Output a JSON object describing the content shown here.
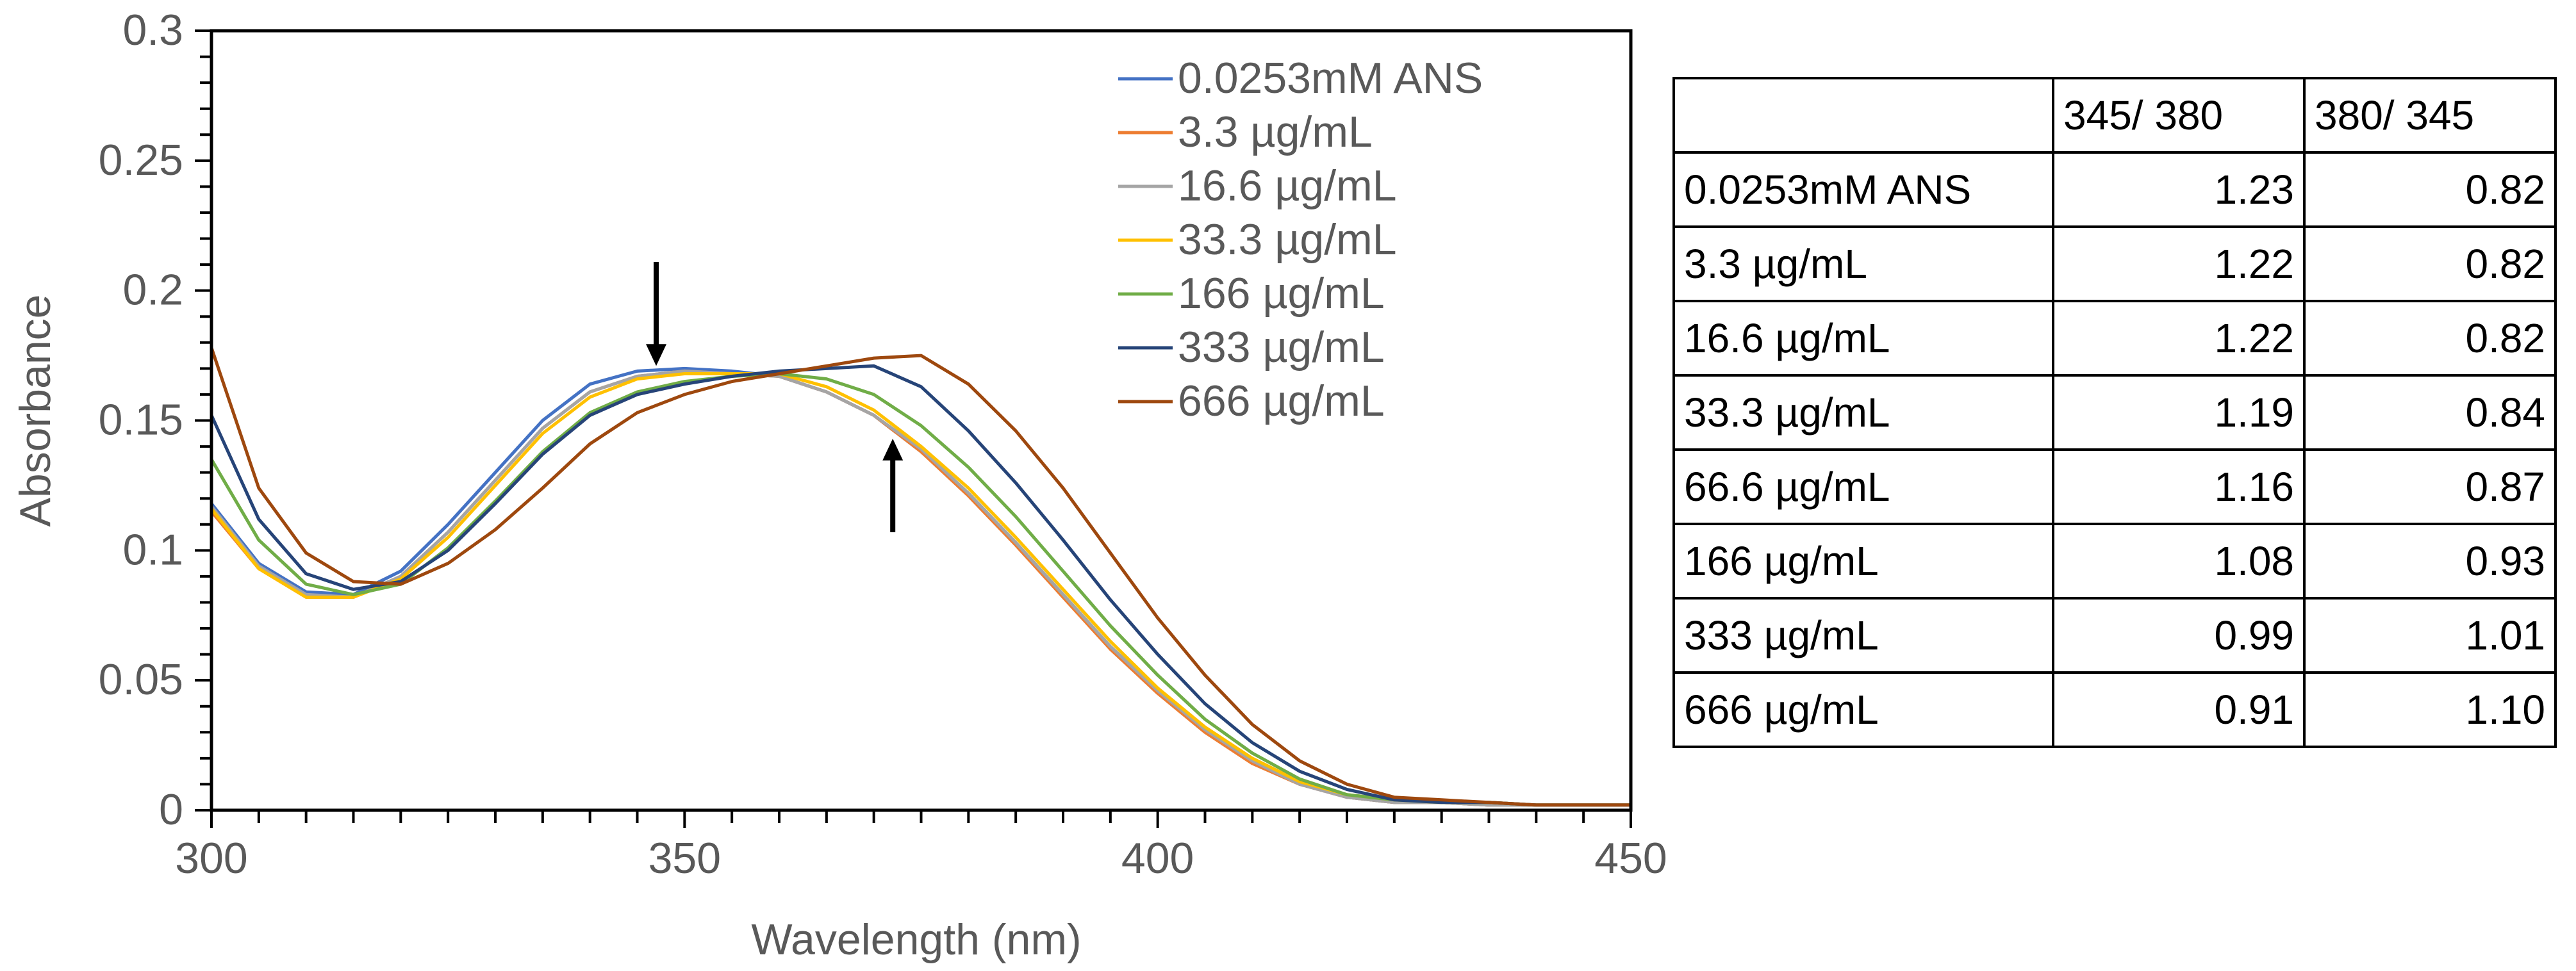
{
  "chart_data": {
    "type": "line",
    "title": "",
    "xlabel": "Wavelength (nm)",
    "ylabel": "Absorbance",
    "xlim": [
      300,
      450
    ],
    "ylim": [
      0,
      0.3
    ],
    "xticks": [
      300,
      350,
      400,
      450
    ],
    "xtick_labels": [
      "300",
      "350",
      "400",
      "450"
    ],
    "yticks": [
      0,
      0.05,
      0.1,
      0.15,
      0.2,
      0.25,
      0.3
    ],
    "ytick_labels": [
      "0",
      "0.05",
      "0.1",
      "0.15",
      "0.2",
      "0.25",
      "0.3"
    ],
    "grid": false,
    "legend_position": "top-right",
    "series": [
      {
        "name": "0.0253mM ANS",
        "color": "#4472C4",
        "x": [
          300,
          305,
          310,
          315,
          320,
          325,
          330,
          335,
          340,
          345,
          350,
          355,
          360,
          365,
          370,
          375,
          380,
          385,
          390,
          395,
          400,
          405,
          410,
          415,
          420,
          425,
          430,
          435,
          440,
          445,
          450
        ],
        "y": [
          0.118,
          0.095,
          0.084,
          0.083,
          0.092,
          0.11,
          0.13,
          0.15,
          0.164,
          0.169,
          0.17,
          0.169,
          0.167,
          0.161,
          0.152,
          0.138,
          0.122,
          0.103,
          0.083,
          0.063,
          0.046,
          0.031,
          0.019,
          0.01,
          0.005,
          0.003,
          0.003,
          0.002,
          0.002,
          0.002,
          0.002
        ]
      },
      {
        "name": "3.3 µg/mL",
        "color": "#ED7D31",
        "x": [
          300,
          305,
          310,
          315,
          320,
          325,
          330,
          335,
          340,
          345,
          350,
          355,
          360,
          365,
          370,
          375,
          380,
          385,
          390,
          395,
          400,
          405,
          410,
          415,
          420,
          425,
          430,
          435,
          440,
          445,
          450
        ],
        "y": [
          0.115,
          0.093,
          0.082,
          0.082,
          0.09,
          0.107,
          0.127,
          0.147,
          0.161,
          0.167,
          0.169,
          0.168,
          0.167,
          0.161,
          0.152,
          0.138,
          0.121,
          0.102,
          0.082,
          0.062,
          0.045,
          0.03,
          0.018,
          0.01,
          0.005,
          0.003,
          0.003,
          0.002,
          0.002,
          0.002,
          0.002
        ]
      },
      {
        "name": "16.6 µg/mL",
        "color": "#A5A5A5",
        "x": [
          300,
          305,
          310,
          315,
          320,
          325,
          330,
          335,
          340,
          345,
          350,
          355,
          360,
          365,
          370,
          375,
          380,
          385,
          390,
          395,
          400,
          405,
          410,
          415,
          420,
          425,
          430,
          435,
          440,
          445,
          450
        ],
        "y": [
          0.117,
          0.094,
          0.083,
          0.082,
          0.09,
          0.107,
          0.127,
          0.147,
          0.161,
          0.167,
          0.169,
          0.168,
          0.167,
          0.161,
          0.152,
          0.139,
          0.122,
          0.103,
          0.083,
          0.063,
          0.046,
          0.031,
          0.019,
          0.01,
          0.005,
          0.003,
          0.003,
          0.002,
          0.002,
          0.002,
          0.002
        ]
      },
      {
        "name": "33.3 µg/mL",
        "color": "#FFC000",
        "x": [
          300,
          305,
          310,
          315,
          320,
          325,
          330,
          335,
          340,
          345,
          350,
          355,
          360,
          365,
          370,
          375,
          380,
          385,
          390,
          395,
          400,
          405,
          410,
          415,
          420,
          425,
          430,
          435,
          440,
          445,
          450
        ],
        "y": [
          0.116,
          0.093,
          0.082,
          0.082,
          0.089,
          0.105,
          0.125,
          0.145,
          0.159,
          0.166,
          0.168,
          0.168,
          0.168,
          0.163,
          0.154,
          0.14,
          0.124,
          0.105,
          0.085,
          0.065,
          0.047,
          0.032,
          0.02,
          0.011,
          0.006,
          0.004,
          0.003,
          0.003,
          0.002,
          0.002,
          0.002
        ]
      },
      {
        "name": "166 µg/mL",
        "color": "#70AD47",
        "x": [
          300,
          305,
          310,
          315,
          320,
          325,
          330,
          335,
          340,
          345,
          350,
          355,
          360,
          365,
          370,
          375,
          380,
          385,
          390,
          395,
          400,
          405,
          410,
          415,
          420,
          425,
          430,
          435,
          440,
          445,
          450
        ],
        "y": [
          0.135,
          0.104,
          0.087,
          0.083,
          0.087,
          0.101,
          0.119,
          0.138,
          0.153,
          0.161,
          0.165,
          0.167,
          0.168,
          0.166,
          0.16,
          0.148,
          0.132,
          0.113,
          0.092,
          0.071,
          0.052,
          0.035,
          0.022,
          0.012,
          0.006,
          0.004,
          0.003,
          0.003,
          0.002,
          0.002,
          0.002
        ]
      },
      {
        "name": "333 µg/mL",
        "color": "#264478",
        "x": [
          300,
          305,
          310,
          315,
          320,
          325,
          330,
          335,
          340,
          345,
          350,
          355,
          360,
          365,
          370,
          375,
          380,
          385,
          390,
          395,
          400,
          405,
          410,
          415,
          420,
          425,
          430,
          435,
          440,
          445,
          450
        ],
        "y": [
          0.152,
          0.112,
          0.091,
          0.085,
          0.088,
          0.1,
          0.118,
          0.137,
          0.152,
          0.16,
          0.164,
          0.167,
          0.169,
          0.17,
          0.171,
          0.163,
          0.146,
          0.126,
          0.104,
          0.081,
          0.06,
          0.041,
          0.026,
          0.015,
          0.008,
          0.004,
          0.003,
          0.003,
          0.002,
          0.002,
          0.002
        ]
      },
      {
        "name": "666 µg/mL",
        "color": "#9E480E",
        "x": [
          300,
          305,
          310,
          315,
          320,
          325,
          330,
          335,
          340,
          345,
          350,
          355,
          360,
          365,
          370,
          375,
          380,
          385,
          390,
          395,
          400,
          405,
          410,
          415,
          420,
          425,
          430,
          435,
          440,
          445,
          450
        ],
        "y": [
          0.178,
          0.124,
          0.099,
          0.088,
          0.087,
          0.095,
          0.108,
          0.124,
          0.141,
          0.153,
          0.16,
          0.165,
          0.168,
          0.171,
          0.174,
          0.175,
          0.164,
          0.146,
          0.124,
          0.099,
          0.074,
          0.052,
          0.033,
          0.019,
          0.01,
          0.005,
          0.004,
          0.003,
          0.002,
          0.002,
          0.002
        ]
      }
    ],
    "annotations": [
      {
        "type": "arrow-down",
        "x": 347,
        "y_tip": 0.171,
        "y_tail": 0.211
      },
      {
        "type": "arrow-up",
        "x": 372,
        "y_tip": 0.143,
        "y_tail": 0.107
      }
    ]
  },
  "table": {
    "headers": [
      "",
      "345/ 380",
      "380/ 345"
    ],
    "rows": [
      {
        "label": "0.0253mM ANS",
        "v1": "1.23",
        "v2": "0.82"
      },
      {
        "label": "3.3 µg/mL",
        "v1": "1.22",
        "v2": "0.82"
      },
      {
        "label": "16.6 µg/mL",
        "v1": "1.22",
        "v2": "0.82"
      },
      {
        "label": "33.3 µg/mL",
        "v1": "1.19",
        "v2": "0.84"
      },
      {
        "label": "66.6 µg/mL",
        "v1": "1.16",
        "v2": "0.87"
      },
      {
        "label": "166 µg/mL",
        "v1": "1.08",
        "v2": "0.93"
      },
      {
        "label": "333 µg/mL",
        "v1": "0.99",
        "v2": "1.01"
      },
      {
        "label": "666 µg/mL",
        "v1": "0.91",
        "v2": "1.10"
      }
    ]
  }
}
